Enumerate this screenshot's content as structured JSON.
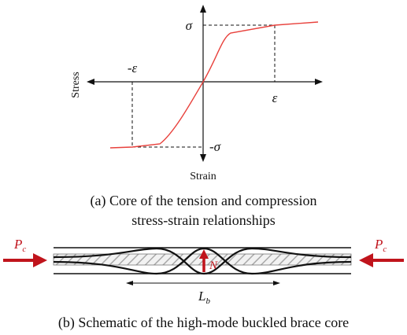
{
  "panel_a": {
    "axis_labels": {
      "stress": "Stress",
      "strain": "Strain"
    },
    "tick_labels": {
      "sigma_pos": "σ",
      "sigma_neg": "-σ",
      "eps_pos": "ε",
      "eps_neg": "-ε"
    },
    "caption_line1": "(a) Core of the tension and compression",
    "caption_line2": "stress-strain relationships",
    "curve_color": "#e8413c"
  },
  "panel_b": {
    "load_left": {
      "main": "P",
      "sub": "c"
    },
    "load_right": {
      "main": "P",
      "sub": "c"
    },
    "force_label": "N",
    "length_label": {
      "main": "L",
      "sub": "b"
    },
    "caption": "(b) Schematic of the high-mode buckled brace core",
    "arrow_color": "#c0141c"
  }
}
